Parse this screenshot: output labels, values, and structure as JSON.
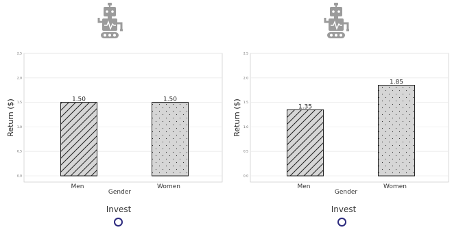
{
  "colors": {
    "bar_fill": "#d6d6d6",
    "bar_stroke": "#222222",
    "robot": "#9b9b9b",
    "radio_ring": "#2c2a7e",
    "grid": "#ebebeb"
  },
  "icons": {
    "robot": "robot-icon"
  },
  "invest_label": "Invest",
  "chart_data": [
    {
      "type": "bar",
      "categories": [
        "Men",
        "Women"
      ],
      "values": [
        1.5,
        1.5
      ],
      "value_labels": [
        "1.50",
        "1.50"
      ],
      "patterns": [
        "diagonal-hatch",
        "dots"
      ],
      "xlabel": "Gender",
      "ylabel": "Return ($)",
      "ylim": [
        0,
        2.5
      ],
      "yticks": [
        "0.0",
        "0.5",
        "1.0",
        "1.5",
        "2.0",
        "2.5"
      ],
      "grid": true
    },
    {
      "type": "bar",
      "categories": [
        "Men",
        "Women"
      ],
      "values": [
        1.35,
        1.85
      ],
      "value_labels": [
        "1.35",
        "1.85"
      ],
      "patterns": [
        "diagonal-hatch",
        "dots"
      ],
      "xlabel": "Gender",
      "ylabel": "Return ($)",
      "ylim": [
        0,
        2.5
      ],
      "yticks": [
        "0.0",
        "0.5",
        "1.0",
        "1.5",
        "2.0",
        "2.5"
      ],
      "grid": true
    }
  ]
}
